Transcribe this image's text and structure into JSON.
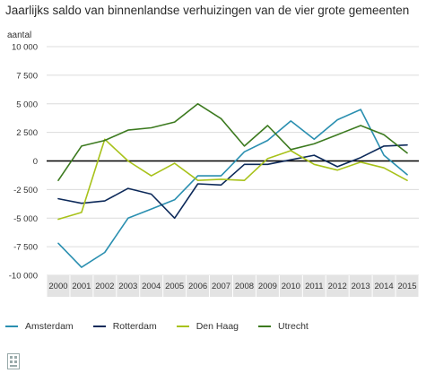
{
  "title": "Jaarlijks saldo van binnenlandse verhuizingen van de vier grote gemeenten",
  "chart_data": {
    "type": "line",
    "ylabel": "aantal",
    "ylim": [
      -10000,
      10000
    ],
    "yticks": [
      10000,
      7500,
      5000,
      2500,
      0,
      -2500,
      -5000,
      -7500,
      -10000
    ],
    "ytick_labels": [
      "10 000",
      "7 500",
      "5 000",
      "2 500",
      "0",
      "-2 500",
      "-5 000",
      "-7 500",
      "-10 000"
    ],
    "x": [
      "2000",
      "2001",
      "2002",
      "2003",
      "2004",
      "2005",
      "2006",
      "2007",
      "2008",
      "2009",
      "2010",
      "2011",
      "2012",
      "2013",
      "2014",
      "2015"
    ],
    "grid": true,
    "legend_position": "bottom",
    "series": [
      {
        "name": "Amsterdam",
        "color": "#2a8fb0",
        "values": [
          -7200,
          -9300,
          -8000,
          -5000,
          -4200,
          -3400,
          -1300,
          -1300,
          800,
          1800,
          3500,
          1900,
          3600,
          4500,
          500,
          -1200
        ]
      },
      {
        "name": "Rotterdam",
        "color": "#0d2a5a",
        "values": [
          -3300,
          -3700,
          -3500,
          -2400,
          -2900,
          -5000,
          -2000,
          -2100,
          -300,
          -300,
          100,
          500,
          -500,
          300,
          1300,
          1400
        ]
      },
      {
        "name": "Den Haag",
        "color": "#a8c21a",
        "values": [
          -5100,
          -4500,
          1900,
          0,
          -1300,
          -200,
          -1700,
          -1600,
          -1700,
          200,
          900,
          -300,
          -800,
          -100,
          -600,
          -1700
        ]
      },
      {
        "name": "Utrecht",
        "color": "#3c7a1f",
        "values": [
          -1700,
          1300,
          1800,
          2700,
          2900,
          3400,
          5000,
          3700,
          1300,
          3100,
          1000,
          1500,
          2300,
          3100,
          2300,
          700
        ]
      }
    ]
  }
}
